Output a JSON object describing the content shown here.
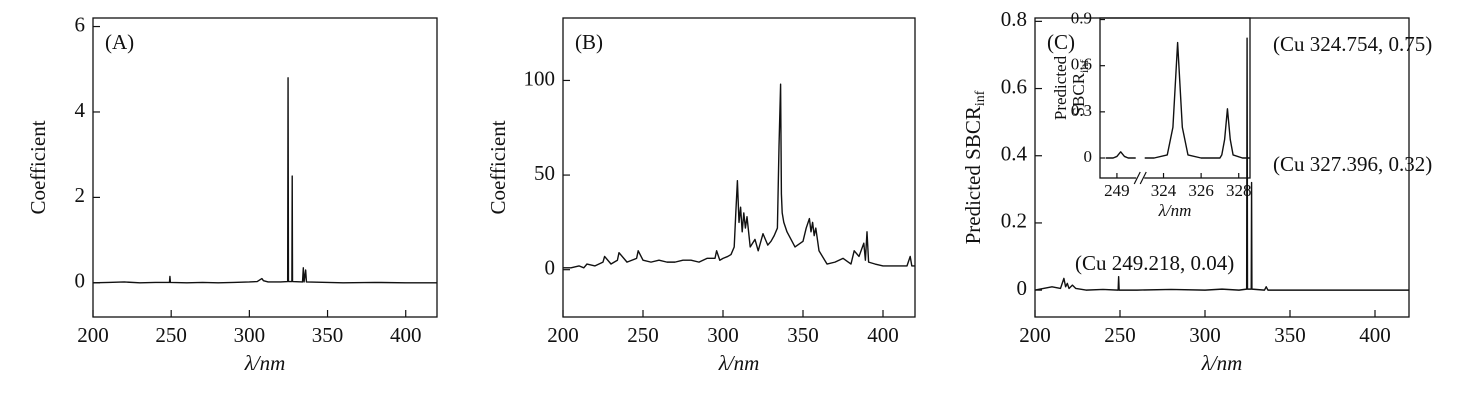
{
  "chart_data": [
    {
      "type": "line",
      "panel_label": "(A)",
      "ylabel": "Coefficient",
      "xlabel": "λ/nm",
      "xlim": [
        200,
        420
      ],
      "xticks": [
        200,
        250,
        300,
        350,
        400
      ],
      "ylim": [
        -0.8,
        6.2
      ],
      "yticks": [
        0,
        2,
        4,
        6
      ],
      "color": "#111111",
      "x": [
        200,
        210,
        220,
        230,
        240,
        248.9,
        249.2,
        249.5,
        260,
        270,
        280,
        290,
        300,
        305,
        308,
        309,
        312,
        320,
        324.5,
        324.75,
        325,
        327.2,
        327.4,
        327.6,
        334,
        334.5,
        335,
        336,
        336.5,
        350,
        360,
        380,
        400,
        420
      ],
      "values": [
        0,
        0.01,
        0.02,
        0,
        0.01,
        0.01,
        0.15,
        0.01,
        0,
        0.01,
        0,
        0.01,
        0.02,
        0.03,
        0.1,
        0.05,
        0.02,
        0.02,
        0.03,
        4.8,
        0.03,
        0.03,
        2.5,
        0.03,
        0.02,
        0.35,
        0.02,
        0.3,
        0.02,
        0.01,
        0,
        0.01,
        0,
        0
      ]
    },
    {
      "type": "line",
      "panel_label": "(B)",
      "ylabel": "Coefficient",
      "xlabel": "λ/nm",
      "xlim": [
        200,
        420
      ],
      "xticks": [
        200,
        250,
        300,
        350,
        400
      ],
      "ylim": [
        -25,
        133
      ],
      "yticks": [
        0,
        50,
        100
      ],
      "color": "#111111",
      "x": [
        200,
        205,
        210,
        213,
        215,
        220,
        225,
        226,
        230,
        234,
        235,
        240,
        246,
        247,
        250,
        255,
        260,
        265,
        270,
        275,
        280,
        285,
        290,
        295,
        296,
        298,
        300,
        303,
        305,
        307,
        308,
        309,
        310,
        311,
        312,
        313,
        314,
        315,
        317,
        320,
        322,
        325,
        328,
        330,
        332,
        334,
        335,
        336,
        336.5,
        337,
        338,
        340,
        345,
        350,
        352,
        354,
        355,
        356,
        357,
        358,
        360,
        365,
        370,
        375,
        380,
        382,
        385,
        388,
        389,
        390,
        391,
        395,
        400,
        405,
        410,
        415,
        417,
        418,
        420
      ],
      "values": [
        1,
        1,
        2,
        1,
        3,
        2,
        4,
        7,
        3,
        5,
        9,
        4,
        6,
        10,
        5,
        4,
        5,
        4,
        4,
        5,
        5,
        4,
        6,
        6,
        10,
        5,
        6,
        7,
        8,
        12,
        30,
        47,
        25,
        33,
        20,
        30,
        22,
        28,
        12,
        16,
        10,
        19,
        13,
        15,
        18,
        22,
        65,
        98,
        40,
        30,
        25,
        20,
        12,
        15,
        22,
        27,
        20,
        25,
        18,
        22,
        10,
        3,
        4,
        6,
        3,
        10,
        7,
        14,
        5,
        20,
        4,
        3,
        2,
        2,
        2,
        2,
        7,
        2,
        2
      ]
    },
    {
      "type": "line",
      "panel_label": "(C)",
      "ylabel": "Predicted SBCR",
      "ylabel_sub": "inf",
      "xlabel": "λ/nm",
      "xlim": [
        200,
        420
      ],
      "xticks": [
        200,
        250,
        300,
        350,
        400
      ],
      "ylim": [
        -0.08,
        0.81
      ],
      "yticks": [
        0,
        0.2,
        0.4,
        0.6,
        0.8
      ],
      "color": "#111111",
      "annotations": [
        "(Cu 324.754, 0.75)",
        "(Cu 327.396, 0.32)",
        "(Cu 249.218, 0.04)"
      ],
      "x": [
        200,
        205,
        210,
        215,
        217,
        218,
        219,
        220,
        222,
        224,
        230,
        240,
        248.9,
        249.2,
        249.5,
        260,
        280,
        300,
        310,
        320,
        324.5,
        324.75,
        325,
        327.2,
        327.4,
        327.6,
        335,
        336,
        337,
        350,
        380,
        420
      ],
      "values": [
        0,
        0.005,
        0.01,
        0.005,
        0.035,
        0.01,
        0.02,
        0.005,
        0.015,
        0.005,
        0,
        0.002,
        0,
        0.04,
        0,
        0,
        0.002,
        0,
        0.003,
        0,
        0.003,
        0.75,
        0.003,
        0.003,
        0.32,
        0.003,
        0,
        0.01,
        0,
        0,
        0,
        0
      ]
    },
    {
      "type": "line",
      "ylabel_lines": [
        "Predicted",
        "SBCR"
      ],
      "ylabel_sub": "inf",
      "xlabel": "λ/nm",
      "xlim": [
        248.1,
        328.6
      ],
      "xbreak": [
        250,
        323
      ],
      "xticks": [
        249,
        324,
        326,
        328
      ],
      "ylim": [
        -0.13,
        0.91
      ],
      "yticks": [
        0,
        0.3,
        0.6,
        0.9
      ],
      "color": "#111111",
      "x": [
        248.4,
        248.8,
        249.0,
        249.2,
        249.4,
        249.6,
        250,
        323,
        323.5,
        324.2,
        324.5,
        324.75,
        325.0,
        325.3,
        326,
        327,
        327.1,
        327.25,
        327.4,
        327.55,
        327.7,
        328.2,
        328.6
      ],
      "values": [
        0,
        0,
        0.01,
        0.04,
        0.01,
        0,
        0,
        0,
        0,
        0.02,
        0.2,
        0.75,
        0.2,
        0.02,
        0,
        0,
        0.02,
        0.12,
        0.32,
        0.12,
        0.02,
        0,
        0
      ]
    }
  ]
}
